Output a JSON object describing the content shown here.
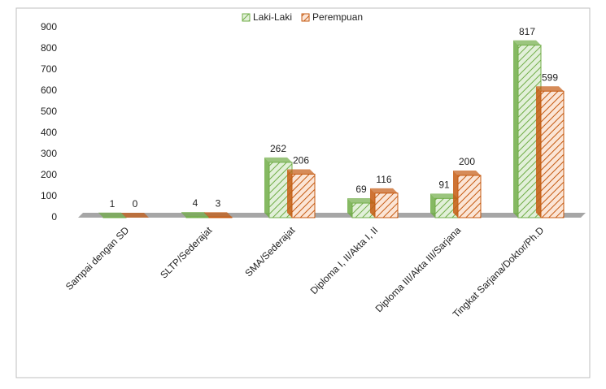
{
  "chart_data": {
    "type": "bar",
    "categories": [
      "Sampai dengan SD",
      "SLTP/Sederajat",
      "SMA/Sederajat",
      "Diploma I, II/Akta I, II",
      "Diploma III/Akta III/Sarjana",
      "Tingkat Sarjana/Doktor/Ph.D"
    ],
    "series": [
      {
        "name": "Laki-Laki",
        "color": "#70ad47",
        "values": [
          1,
          4,
          262,
          69,
          91,
          817
        ]
      },
      {
        "name": "Perempuan",
        "color": "#c55a11",
        "values": [
          0,
          3,
          206,
          116,
          200,
          599
        ]
      }
    ],
    "ylim": [
      0,
      900
    ],
    "yticks": [
      0,
      100,
      200,
      300,
      400,
      500,
      600,
      700,
      800,
      900
    ],
    "legend": "top"
  }
}
